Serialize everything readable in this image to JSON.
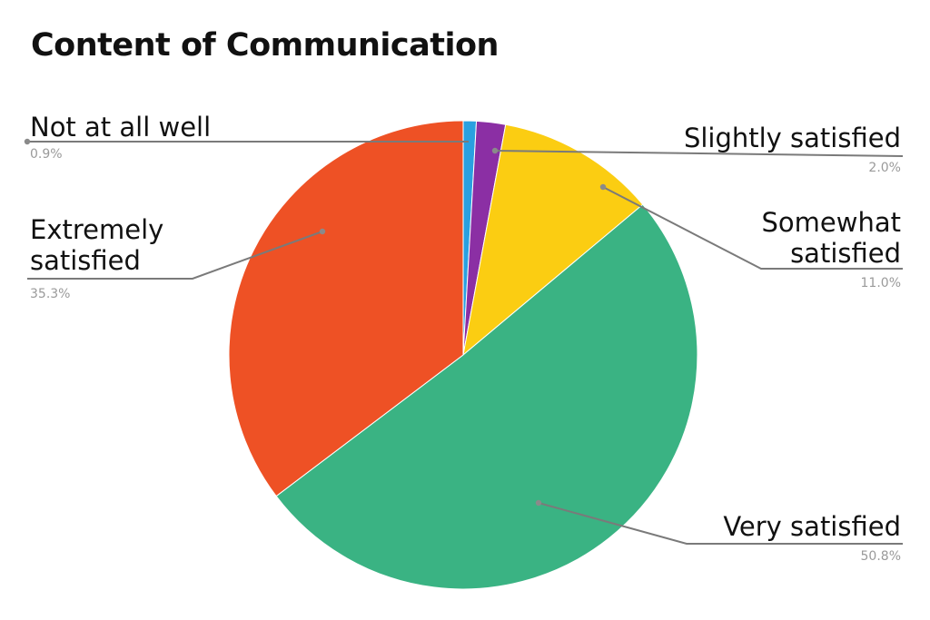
{
  "chart_data": {
    "type": "pie",
    "title": "Content of Communication",
    "slices": [
      {
        "label": "Not at all well",
        "value": 0.9,
        "display": "0.9%",
        "color": "#2aa0e0"
      },
      {
        "label": "Slightly satisfied",
        "value": 2.0,
        "display": "2.0%",
        "color": "#8b2fa4"
      },
      {
        "label": "Somewhat satisfied",
        "value": 11.0,
        "display": "11.0%",
        "color": "#fbcd12"
      },
      {
        "label": "Very satisfied",
        "value": 50.8,
        "display": "50.8%",
        "color": "#3ab383"
      },
      {
        "label": "Extremely satisfied",
        "value": 35.3,
        "display": "35.3%",
        "color": "#ee5125"
      }
    ],
    "legend": "none",
    "start_angle": "12 o'clock",
    "direction": "clockwise"
  }
}
